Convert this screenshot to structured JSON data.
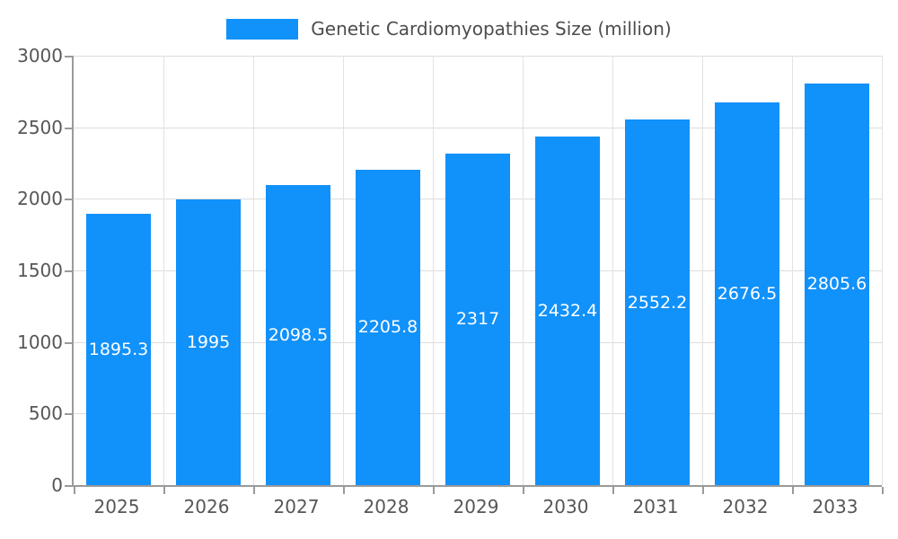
{
  "chart_data": {
    "type": "bar",
    "title": "Genetic Cardiomyopathies Size (million)",
    "categories": [
      "2025",
      "2026",
      "2027",
      "2028",
      "2029",
      "2030",
      "2031",
      "2032",
      "2033"
    ],
    "values": [
      1895.3,
      1995,
      2098.5,
      2205.8,
      2317,
      2432.4,
      2552.2,
      2676.5,
      2805.6
    ],
    "value_labels": [
      "1895.3",
      "1995",
      "2098.5",
      "2205.8",
      "2317",
      "2432.4",
      "2552.2",
      "2676.5",
      "2805.6"
    ],
    "xlabel": "",
    "ylabel": "",
    "ylim": [
      0,
      3000
    ],
    "yticks": [
      0,
      500,
      1000,
      1500,
      2000,
      2500,
      3000
    ],
    "ytick_labels": [
      "0",
      "500",
      "1000",
      "1500",
      "2000",
      "2500",
      "3000"
    ],
    "grid": true,
    "legend_position": "top-center",
    "bar_color": "#1191fa",
    "bar_label_color": "#ffffff",
    "axis_text_color": "#565656",
    "gridline_color": "#dcdcdc"
  }
}
